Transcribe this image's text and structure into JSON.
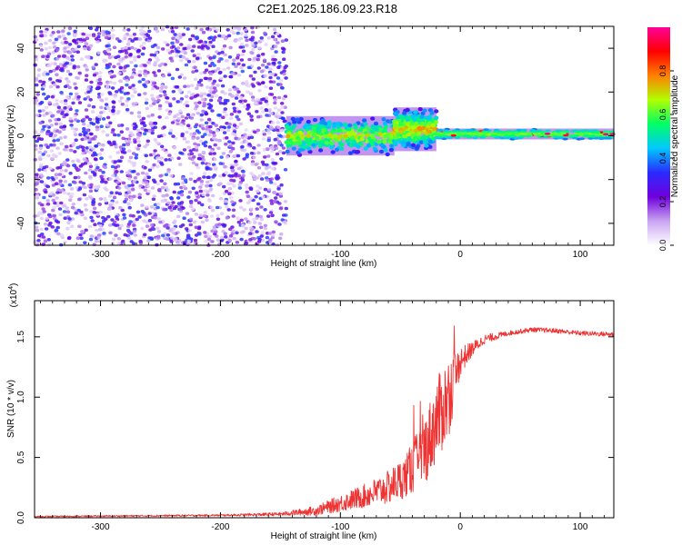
{
  "title": "C2E1.2025.186.09.23.R18",
  "chart_data": [
    {
      "type": "heatmap",
      "xlabel": "Height of straight line (km)",
      "ylabel": "Frequency (Hz)",
      "xlim": [
        -355,
        128
      ],
      "ylim": [
        -50,
        50
      ],
      "xticks": [
        -300,
        -200,
        -100,
        0,
        100
      ],
      "yticks": [
        -40,
        -20,
        0,
        20,
        40
      ],
      "colorbar": {
        "label": "Normalized spectral amplitude",
        "range": [
          0,
          1
        ],
        "ticks": [
          0.0,
          0.2,
          0.4,
          0.6,
          0.8
        ],
        "colors": [
          "#ffffff",
          "#c9a4f2",
          "#7000dd",
          "#2a2aff",
          "#00c8ff",
          "#00ff66",
          "#b0ff00",
          "#ff8000",
          "#ff0000",
          "#ff0099"
        ]
      },
      "regions": [
        {
          "x": [
            -355,
            -145
          ],
          "freq_half_width": 50,
          "amplitude": 0.15,
          "description": "noise"
        },
        {
          "x": [
            -145,
            -55
          ],
          "freq_center": 0,
          "freq_half_width": 9,
          "amplitude": 0.4
        },
        {
          "x": [
            -55,
            -20
          ],
          "freq_center": 3,
          "freq_half_width": 10,
          "amplitude": 0.45
        },
        {
          "x": [
            -20,
            128
          ],
          "freq_center": 0.8,
          "freq_half_width": 2.5,
          "amplitude": 0.65
        }
      ]
    },
    {
      "type": "line",
      "xlabel": "Height of straight line (km)",
      "ylabel": "SNR (10 * v/v)",
      "y_multiplier": "(x10",
      "y_multiplier_exp": "4",
      "xlim": [
        -355,
        128
      ],
      "ylim": [
        0,
        1.8
      ],
      "xticks": [
        -300,
        -200,
        -100,
        0,
        100
      ],
      "yticks": [
        0.0,
        0.5,
        1.0,
        1.5
      ],
      "color": "#ee3333",
      "envelope": {
        "x": [
          -355,
          -200,
          -150,
          -120,
          -100,
          -80,
          -60,
          -45,
          -30,
          -20,
          -10,
          0,
          10,
          20,
          40,
          60,
          80,
          100,
          128
        ],
        "base": [
          0.01,
          0.02,
          0.03,
          0.06,
          0.12,
          0.18,
          0.25,
          0.35,
          0.55,
          0.8,
          1.0,
          1.3,
          1.4,
          1.48,
          1.53,
          1.56,
          1.55,
          1.53,
          1.52
        ],
        "noise": [
          0.005,
          0.008,
          0.015,
          0.04,
          0.07,
          0.1,
          0.14,
          0.18,
          0.28,
          0.35,
          0.35,
          0.12,
          0.06,
          0.04,
          0.02,
          0.02,
          0.02,
          0.02,
          0.02
        ]
      }
    }
  ]
}
